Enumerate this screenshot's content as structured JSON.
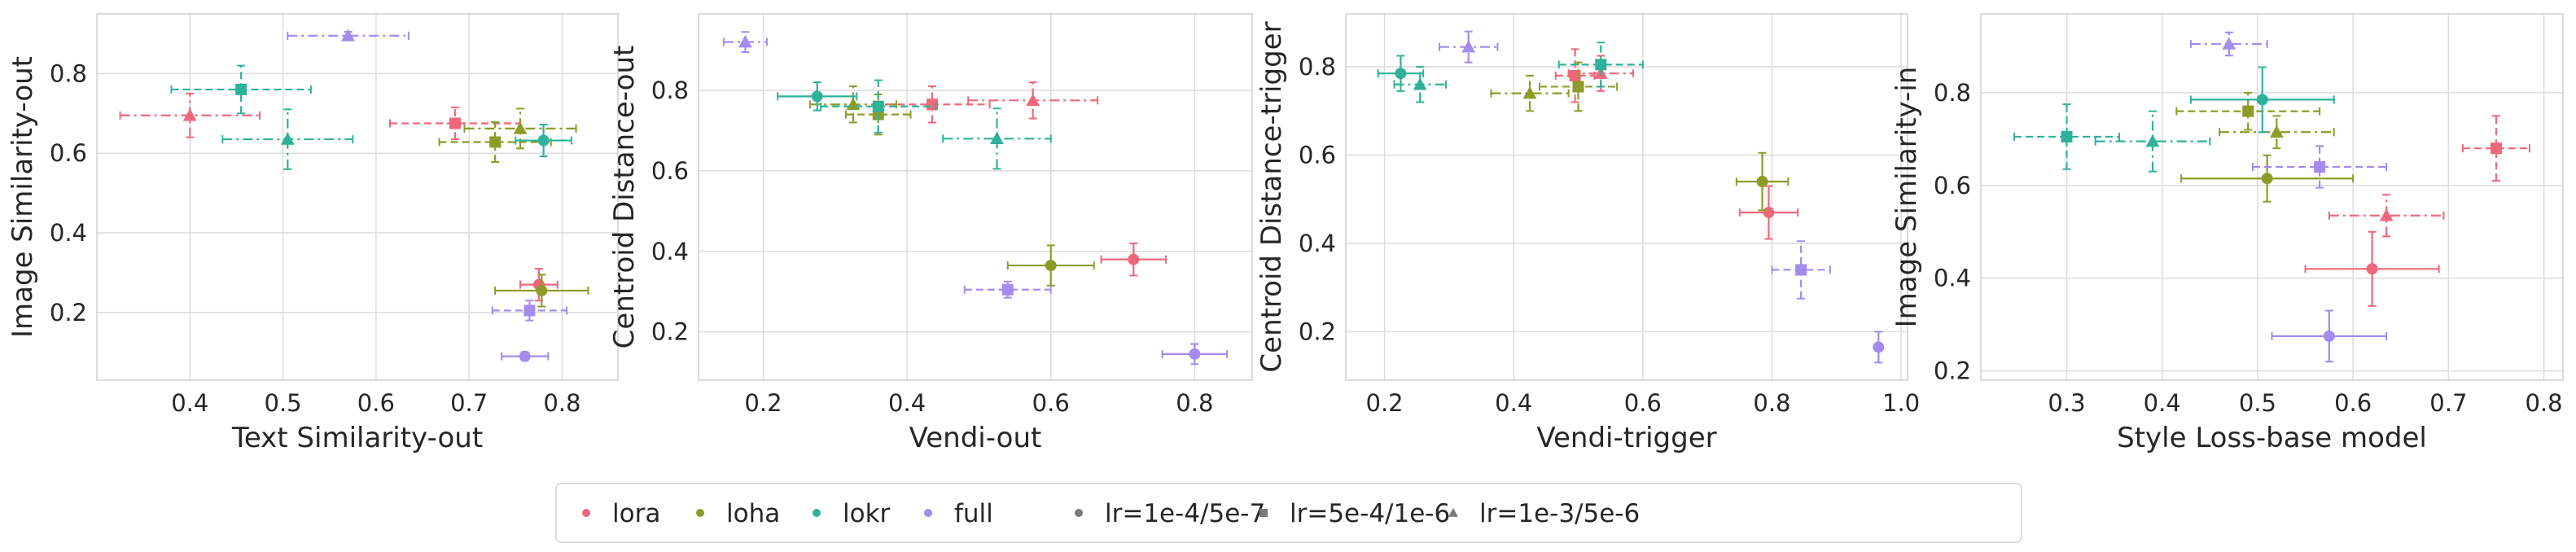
{
  "colors": {
    "lora": "#f0677a",
    "loha": "#8c9c27",
    "lokr": "#2eb29b",
    "full": "#a48bee",
    "lr_marker": "#7a7a7a",
    "grid": "#dcdcdc",
    "spine": "#cfcfcf"
  },
  "legend": {
    "placement": "bottom-center",
    "items": [
      {
        "label": "lora",
        "kind": "method",
        "key": "lora",
        "marker": "circle"
      },
      {
        "label": "loha",
        "kind": "method",
        "key": "loha",
        "marker": "circle"
      },
      {
        "label": "lokr",
        "kind": "method",
        "key": "lokr",
        "marker": "circle"
      },
      {
        "label": "full",
        "kind": "method",
        "key": "full",
        "marker": "circle"
      },
      {
        "label": "lr=1e-4/5e-7",
        "kind": "lr",
        "marker": "circle"
      },
      {
        "label": "lr=5e-4/1e-6",
        "kind": "lr",
        "marker": "square"
      },
      {
        "label": "lr=1e-3/5e-6",
        "kind": "lr",
        "marker": "triangle"
      }
    ]
  },
  "chart_data": [
    {
      "type": "scatter",
      "title": "",
      "xlabel": "Text Similarity-out",
      "ylabel": "Image Similarity-out",
      "xlim": [
        0.3,
        0.86
      ],
      "ylim": [
        0.03,
        0.95
      ],
      "xticks": [
        "0.4",
        "0.5",
        "0.6",
        "0.7",
        "0.8"
      ],
      "yticks": [
        "0.2",
        "0.4",
        "0.6",
        "0.8"
      ],
      "xtick_values": [
        0.4,
        0.5,
        0.6,
        0.7,
        0.8
      ],
      "ytick_values": [
        0.2,
        0.4,
        0.6,
        0.8
      ],
      "grid": true,
      "series": [
        {
          "method": "lora",
          "points": [
            {
              "lr": "lr=1e-4/5e-7",
              "x": 0.775,
              "y": 0.27,
              "xerr": 0.02,
              "yerr": 0.04
            },
            {
              "lr": "lr=5e-4/1e-6",
              "x": 0.685,
              "y": 0.675,
              "xerr": 0.07,
              "yerr": 0.04
            },
            {
              "lr": "lr=1e-3/5e-6",
              "x": 0.4,
              "y": 0.695,
              "xerr": 0.075,
              "yerr": 0.055
            }
          ]
        },
        {
          "method": "loha",
          "points": [
            {
              "lr": "lr=1e-4/5e-7",
              "x": 0.778,
              "y": 0.255,
              "xerr": 0.05,
              "yerr": 0.04
            },
            {
              "lr": "lr=5e-4/1e-6",
              "x": 0.728,
              "y": 0.628,
              "xerr": 0.06,
              "yerr": 0.05
            },
            {
              "lr": "lr=1e-3/5e-6",
              "x": 0.755,
              "y": 0.662,
              "xerr": 0.06,
              "yerr": 0.05
            }
          ]
        },
        {
          "method": "lokr",
          "points": [
            {
              "lr": "lr=1e-4/5e-7",
              "x": 0.78,
              "y": 0.632,
              "xerr": 0.03,
              "yerr": 0.04
            },
            {
              "lr": "lr=5e-4/1e-6",
              "x": 0.455,
              "y": 0.76,
              "xerr": 0.075,
              "yerr": 0.06
            },
            {
              "lr": "lr=1e-3/5e-6",
              "x": 0.505,
              "y": 0.635,
              "xerr": 0.07,
              "yerr": 0.075
            }
          ]
        },
        {
          "method": "full",
          "points": [
            {
              "lr": "lr=1e-4/5e-7",
              "x": 0.76,
              "y": 0.09,
              "xerr": 0.025,
              "yerr": 0.01
            },
            {
              "lr": "lr=5e-4/1e-6",
              "x": 0.765,
              "y": 0.205,
              "xerr": 0.04,
              "yerr": 0.025
            },
            {
              "lr": "lr=1e-3/5e-6",
              "x": 0.57,
              "y": 0.895,
              "xerr": 0.065,
              "yerr": 0.01
            }
          ]
        }
      ]
    },
    {
      "type": "scatter",
      "title": "",
      "xlabel": "Vendi-out",
      "ylabel": "Centroid Distance-out",
      "xlim": [
        0.11,
        0.88
      ],
      "ylim": [
        0.08,
        0.99
      ],
      "xticks": [
        "0.2",
        "0.4",
        "0.6",
        "0.8"
      ],
      "yticks": [
        "0.2",
        "0.4",
        "0.6",
        "0.8"
      ],
      "xtick_values": [
        0.2,
        0.4,
        0.6,
        0.8
      ],
      "ytick_values": [
        0.2,
        0.4,
        0.6,
        0.8
      ],
      "grid": true,
      "series": [
        {
          "method": "lora",
          "points": [
            {
              "lr": "lr=1e-4/5e-7",
              "x": 0.715,
              "y": 0.38,
              "xerr": 0.045,
              "yerr": 0.04
            },
            {
              "lr": "lr=5e-4/1e-6",
              "x": 0.435,
              "y": 0.765,
              "xerr": 0.08,
              "yerr": 0.045
            },
            {
              "lr": "lr=1e-3/5e-6",
              "x": 0.575,
              "y": 0.775,
              "xerr": 0.09,
              "yerr": 0.045
            }
          ]
        },
        {
          "method": "loha",
          "points": [
            {
              "lr": "lr=1e-4/5e-7",
              "x": 0.6,
              "y": 0.365,
              "xerr": 0.06,
              "yerr": 0.05
            },
            {
              "lr": "lr=5e-4/1e-6",
              "x": 0.36,
              "y": 0.74,
              "xerr": 0.045,
              "yerr": 0.05
            },
            {
              "lr": "lr=1e-3/5e-6",
              "x": 0.325,
              "y": 0.765,
              "xerr": 0.06,
              "yerr": 0.045
            }
          ]
        },
        {
          "method": "lokr",
          "points": [
            {
              "lr": "lr=1e-4/5e-7",
              "x": 0.275,
              "y": 0.785,
              "xerr": 0.055,
              "yerr": 0.035
            },
            {
              "lr": "lr=5e-4/1e-6",
              "x": 0.36,
              "y": 0.76,
              "xerr": 0.08,
              "yerr": 0.065
            },
            {
              "lr": "lr=1e-3/5e-6",
              "x": 0.525,
              "y": 0.68,
              "xerr": 0.075,
              "yerr": 0.075
            }
          ]
        },
        {
          "method": "full",
          "points": [
            {
              "lr": "lr=1e-4/5e-7",
              "x": 0.8,
              "y": 0.145,
              "xerr": 0.045,
              "yerr": 0.025
            },
            {
              "lr": "lr=5e-4/1e-6",
              "x": 0.54,
              "y": 0.305,
              "xerr": 0.06,
              "yerr": 0.02
            },
            {
              "lr": "lr=1e-3/5e-6",
              "x": 0.175,
              "y": 0.92,
              "xerr": 0.03,
              "yerr": 0.025
            }
          ]
        }
      ]
    },
    {
      "type": "scatter",
      "title": "",
      "xlabel": "Vendi-trigger",
      "ylabel": "Centroid Distance-trigger",
      "xlim": [
        0.14,
        1.01
      ],
      "ylim": [
        0.09,
        0.92
      ],
      "xticks": [
        "0.2",
        "0.4",
        "0.6",
        "0.8",
        "1.0"
      ],
      "yticks": [
        "0.2",
        "0.4",
        "0.6",
        "0.8"
      ],
      "xtick_values": [
        0.2,
        0.4,
        0.6,
        0.8,
        1.0
      ],
      "ytick_values": [
        0.2,
        0.4,
        0.6,
        0.8
      ],
      "grid": true,
      "series": [
        {
          "method": "lora",
          "points": [
            {
              "lr": "lr=1e-4/5e-7",
              "x": 0.795,
              "y": 0.47,
              "xerr": 0.045,
              "yerr": 0.06
            },
            {
              "lr": "lr=5e-4/1e-6",
              "x": 0.495,
              "y": 0.78,
              "xerr": 0.03,
              "yerr": 0.06
            },
            {
              "lr": "lr=1e-3/5e-6",
              "x": 0.535,
              "y": 0.785,
              "xerr": 0.05,
              "yerr": 0.04
            }
          ]
        },
        {
          "method": "loha",
          "points": [
            {
              "lr": "lr=1e-4/5e-7",
              "x": 0.785,
              "y": 0.54,
              "xerr": 0.04,
              "yerr": 0.065
            },
            {
              "lr": "lr=5e-4/1e-6",
              "x": 0.5,
              "y": 0.755,
              "xerr": 0.06,
              "yerr": 0.055
            },
            {
              "lr": "lr=1e-3/5e-6",
              "x": 0.425,
              "y": 0.74,
              "xerr": 0.06,
              "yerr": 0.04
            }
          ]
        },
        {
          "method": "lokr",
          "points": [
            {
              "lr": "lr=1e-4/5e-7",
              "x": 0.225,
              "y": 0.785,
              "xerr": 0.035,
              "yerr": 0.04
            },
            {
              "lr": "lr=5e-4/1e-6",
              "x": 0.535,
              "y": 0.805,
              "xerr": 0.065,
              "yerr": 0.05
            },
            {
              "lr": "lr=1e-3/5e-6",
              "x": 0.255,
              "y": 0.76,
              "xerr": 0.04,
              "yerr": 0.04
            }
          ]
        },
        {
          "method": "full",
          "points": [
            {
              "lr": "lr=1e-4/5e-7",
              "x": 0.965,
              "y": 0.165,
              "xerr": 0.005,
              "yerr": 0.035
            },
            {
              "lr": "lr=5e-4/1e-6",
              "x": 0.845,
              "y": 0.34,
              "xerr": 0.045,
              "yerr": 0.065
            },
            {
              "lr": "lr=1e-3/5e-6",
              "x": 0.33,
              "y": 0.845,
              "xerr": 0.045,
              "yerr": 0.035
            }
          ]
        }
      ]
    },
    {
      "type": "scatter",
      "title": "",
      "xlabel": "Style Loss-base model",
      "ylabel": "Image Similarity-in",
      "xlim": [
        0.21,
        0.82
      ],
      "ylim": [
        0.18,
        0.97
      ],
      "xticks": [
        "0.3",
        "0.4",
        "0.5",
        "0.6",
        "0.7",
        "0.8"
      ],
      "yticks": [
        "0.2",
        "0.4",
        "0.6",
        "0.8"
      ],
      "xtick_values": [
        0.3,
        0.4,
        0.5,
        0.6,
        0.7,
        0.8
      ],
      "ytick_values": [
        0.2,
        0.4,
        0.6,
        0.8
      ],
      "grid": true,
      "series": [
        {
          "method": "lora",
          "points": [
            {
              "lr": "lr=1e-4/5e-7",
              "x": 0.62,
              "y": 0.42,
              "xerr": 0.07,
              "yerr": 0.08
            },
            {
              "lr": "lr=5e-4/1e-6",
              "x": 0.75,
              "y": 0.68,
              "xerr": 0.035,
              "yerr": 0.07
            },
            {
              "lr": "lr=1e-3/5e-6",
              "x": 0.635,
              "y": 0.535,
              "xerr": 0.06,
              "yerr": 0.045
            }
          ]
        },
        {
          "method": "loha",
          "points": [
            {
              "lr": "lr=1e-4/5e-7",
              "x": 0.51,
              "y": 0.615,
              "xerr": 0.09,
              "yerr": 0.05
            },
            {
              "lr": "lr=5e-4/1e-6",
              "x": 0.49,
              "y": 0.76,
              "xerr": 0.075,
              "yerr": 0.04
            },
            {
              "lr": "lr=1e-3/5e-6",
              "x": 0.52,
              "y": 0.715,
              "xerr": 0.06,
              "yerr": 0.035
            }
          ]
        },
        {
          "method": "lokr",
          "points": [
            {
              "lr": "lr=1e-4/5e-7",
              "x": 0.505,
              "y": 0.785,
              "xerr": 0.075,
              "yerr": 0.07
            },
            {
              "lr": "lr=5e-4/1e-6",
              "x": 0.3,
              "y": 0.705,
              "xerr": 0.055,
              "yerr": 0.07
            },
            {
              "lr": "lr=1e-3/5e-6",
              "x": 0.39,
              "y": 0.695,
              "xerr": 0.06,
              "yerr": 0.065
            }
          ]
        },
        {
          "method": "full",
          "points": [
            {
              "lr": "lr=1e-4/5e-7",
              "x": 0.575,
              "y": 0.275,
              "xerr": 0.06,
              "yerr": 0.055
            },
            {
              "lr": "lr=5e-4/1e-6",
              "x": 0.565,
              "y": 0.64,
              "xerr": 0.07,
              "yerr": 0.045
            },
            {
              "lr": "lr=1e-3/5e-6",
              "x": 0.47,
              "y": 0.905,
              "xerr": 0.04,
              "yerr": 0.025
            }
          ]
        }
      ]
    }
  ]
}
